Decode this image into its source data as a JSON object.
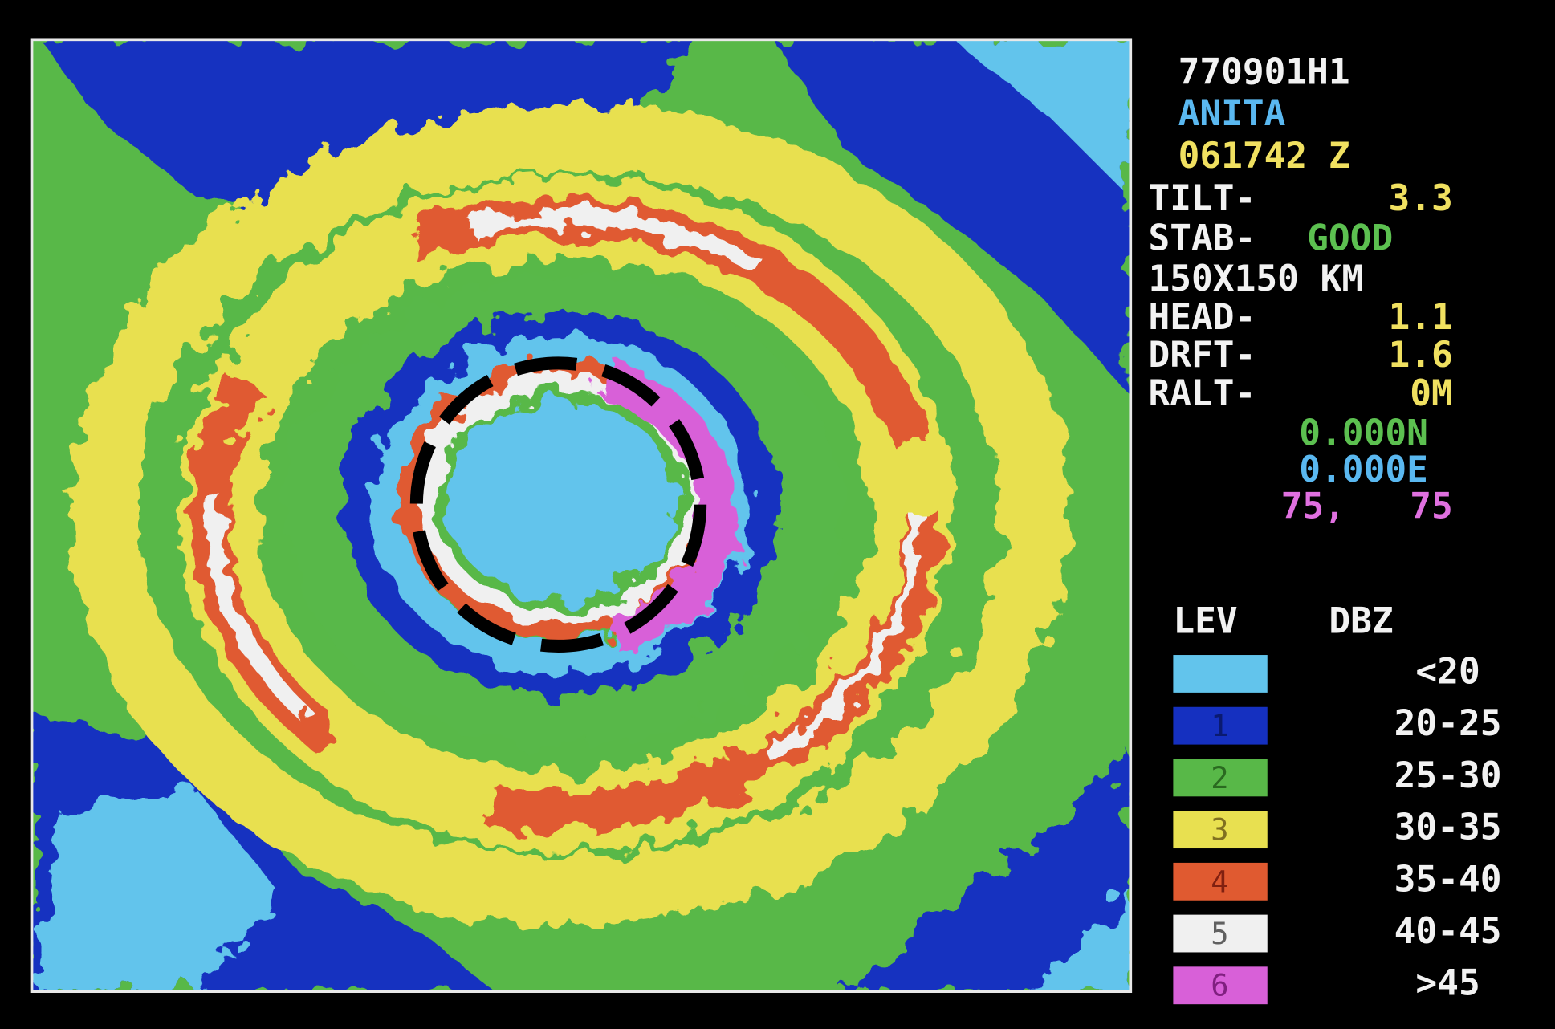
{
  "readout": {
    "id": "770901H1",
    "storm": "ANITA",
    "time": "061742 Z",
    "tilt": {
      "label": "TILT-",
      "value": "3.3"
    },
    "stab": {
      "label": "STAB-",
      "value": "GOOD"
    },
    "range": "150X150 KM",
    "head": {
      "label": "HEAD-",
      "value": "1.1"
    },
    "drft": {
      "label": "DRFT-",
      "value": "1.6"
    },
    "ralt": {
      "label": "RALT-",
      "value": "0M"
    },
    "lat": "0.000N",
    "lon": "0.000E",
    "cursor": "75,   75"
  },
  "legend": {
    "headers": [
      "LEV",
      "DBZ"
    ],
    "levels": [
      {
        "dbz": "<20"
      },
      {
        "level": "1",
        "dbz": "20-25"
      },
      {
        "level": "2",
        "dbz": "25-30"
      },
      {
        "level": "3",
        "dbz": "30-35"
      },
      {
        "level": "4",
        "dbz": "35-40"
      },
      {
        "level": "5",
        "dbz": "40-45"
      },
      {
        "level": "6",
        "dbz": ">45"
      }
    ]
  }
}
